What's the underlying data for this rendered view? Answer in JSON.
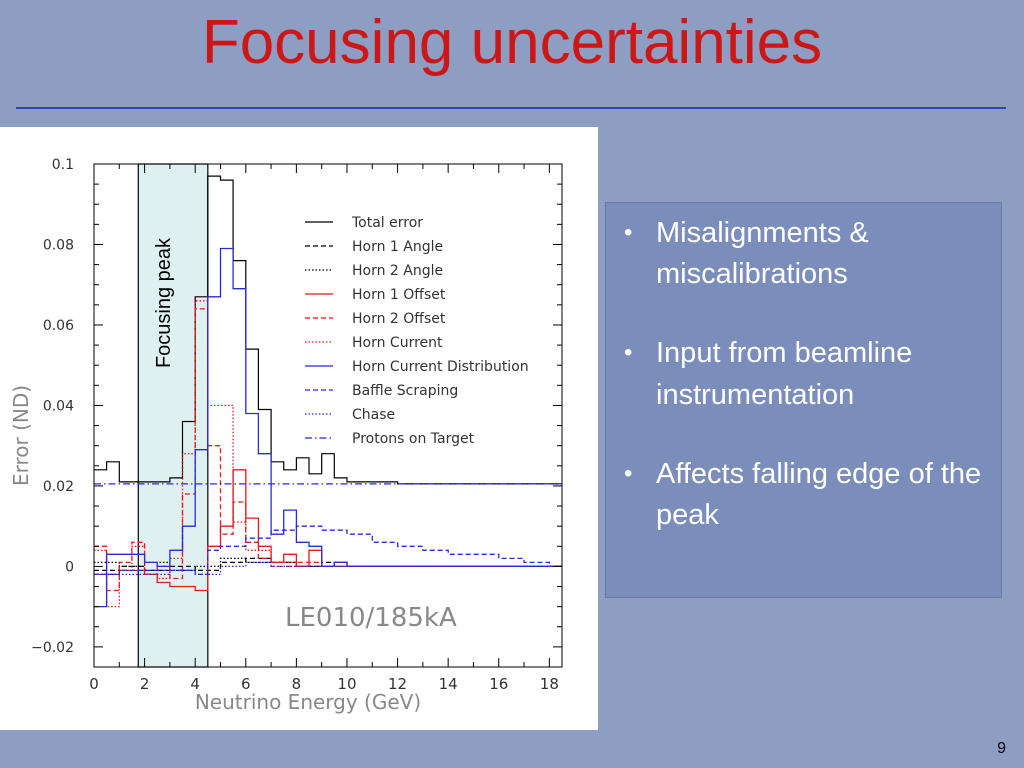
{
  "slide": {
    "title": "Focusing uncertainties",
    "slide_number": "9",
    "bullets": [
      "Misalignments & miscalibrations",
      "Input from beamline instrumentation",
      "Affects falling edge of the peak"
    ]
  },
  "chart_data": {
    "type": "line",
    "xlabel": "Neutrino Energy (GeV)",
    "ylabel": "Error (ND)",
    "xlim": [
      0,
      18.5
    ],
    "ylim": [
      -0.025,
      0.1
    ],
    "xticks": [
      0,
      2,
      4,
      6,
      8,
      10,
      12,
      14,
      16,
      18
    ],
    "yticks": [
      -0.02,
      0,
      0.02,
      0.04,
      0.06,
      0.08,
      0.1
    ],
    "xtick_labels": [
      "0",
      "2",
      "4",
      "6",
      "8",
      "10",
      "12",
      "14",
      "16",
      "18"
    ],
    "ytick_labels": [
      "−0.02",
      "0",
      "0.02",
      "0.04",
      "0.06",
      "0.08",
      "0.1"
    ],
    "annotation": "LE010/185kA",
    "highlight": {
      "label": "Focusing peak",
      "x_range": [
        1.75,
        4.5
      ],
      "fill": "#dff0f0"
    },
    "legend_position": "top-right",
    "series": [
      {
        "name": "Total error",
        "color": "#000000",
        "dash": "solid",
        "step": true,
        "x": [
          0,
          0.5,
          1,
          1.5,
          2,
          2.5,
          3,
          3.5,
          4,
          4.5,
          5,
          5.5,
          6,
          6.5,
          7,
          7.5,
          8,
          8.5,
          9,
          9.5,
          10,
          11,
          12,
          13,
          14,
          15,
          16,
          17,
          18
        ],
        "y": [
          0.024,
          0.026,
          0.021,
          0.021,
          0.021,
          0.021,
          0.022,
          0.036,
          0.067,
          0.097,
          0.096,
          0.076,
          0.054,
          0.039,
          0.026,
          0.024,
          0.027,
          0.023,
          0.028,
          0.022,
          0.021,
          0.021,
          0.0205,
          0.0205,
          0.0205,
          0.0205,
          0.0205,
          0.0205,
          0.0205
        ]
      },
      {
        "name": "Horn 1 Angle",
        "color": "#000000",
        "dash": "dashed",
        "step": true,
        "x": [
          0,
          1,
          2,
          3,
          4,
          5,
          6,
          7,
          8,
          9,
          10,
          12,
          18
        ],
        "y": [
          -0.001,
          0.0,
          -0.001,
          0.0,
          -0.001,
          0.001,
          0.002,
          0.001,
          0.0,
          0.001,
          0.0,
          0.0,
          0.0
        ]
      },
      {
        "name": "Horn 2 Angle",
        "color": "#000000",
        "dash": "dotted",
        "step": true,
        "x": [
          0,
          1,
          2,
          3,
          4,
          5,
          6,
          7,
          8,
          9,
          10,
          12,
          18
        ],
        "y": [
          0.001,
          0.0,
          0.001,
          -0.001,
          0.0,
          0.002,
          0.001,
          0.001,
          0.0,
          0.0,
          0.0,
          0.0,
          0.0
        ]
      },
      {
        "name": "Horn 1 Offset",
        "color": "#e21b1b",
        "dash": "solid",
        "step": true,
        "x": [
          0,
          0.5,
          1,
          1.5,
          2,
          2.5,
          3,
          3.5,
          4,
          4.5,
          5,
          5.5,
          6,
          6.5,
          7,
          7.5,
          8,
          8.5,
          9,
          9.5,
          10,
          11
        ],
        "y": [
          -0.002,
          -0.002,
          -0.001,
          -0.001,
          -0.002,
          -0.004,
          -0.005,
          -0.005,
          -0.006,
          0.005,
          0.01,
          0.024,
          0.012,
          0.005,
          0.001,
          0.003,
          0.0,
          0.004,
          0.0,
          0.001,
          0.0,
          0.0
        ]
      },
      {
        "name": "Horn 2 Offset",
        "color": "#e21b1b",
        "dash": "dashed",
        "step": true,
        "x": [
          0,
          0.5,
          1,
          1.5,
          2,
          2.5,
          3,
          3.5,
          4,
          4.5,
          5,
          5.5,
          6,
          6.5,
          7,
          8,
          9,
          10,
          11
        ],
        "y": [
          0.005,
          -0.006,
          0.001,
          0.006,
          -0.002,
          0.0,
          -0.003,
          0.018,
          0.064,
          0.03,
          0.008,
          0.016,
          0.006,
          0.002,
          0.0,
          0.001,
          0.0,
          0.0,
          0.0
        ]
      },
      {
        "name": "Horn Current",
        "color": "#e21b1b",
        "dash": "dotted",
        "step": true,
        "x": [
          0,
          0.5,
          1,
          1.5,
          2,
          2.5,
          3,
          3.5,
          4,
          4.5,
          5,
          5.5,
          6,
          7,
          8,
          9,
          10
        ],
        "y": [
          0.004,
          -0.01,
          -0.001,
          0.005,
          -0.002,
          -0.003,
          0.002,
          0.028,
          0.066,
          0.04,
          0.04,
          0.011,
          0.004,
          0.001,
          0.0,
          0.0,
          0.0
        ]
      },
      {
        "name": "Horn Current Distribution",
        "color": "#2a2ad8",
        "dash": "solid",
        "step": true,
        "x": [
          0,
          0.5,
          1,
          1.5,
          2,
          2.5,
          3,
          3.5,
          4,
          4.5,
          5,
          5.5,
          6,
          6.5,
          7,
          7.5,
          8,
          8.5,
          9,
          9.5,
          10,
          11,
          12,
          13,
          14,
          15,
          16,
          17,
          18
        ],
        "y": [
          -0.01,
          0.003,
          0.003,
          0.003,
          0.001,
          0.0,
          0.004,
          0.01,
          0.029,
          0.067,
          0.079,
          0.069,
          0.038,
          0.028,
          0.008,
          0.014,
          0.006,
          0.005,
          0.0,
          0.001,
          0.0,
          0.0,
          0.0,
          0.0,
          0.0,
          0.0,
          0.0,
          0.0,
          0.0
        ]
      },
      {
        "name": "Baffle Scraping",
        "color": "#2a2ad8",
        "dash": "dashed",
        "step": true,
        "x": [
          0,
          1,
          2,
          3,
          4,
          4.5,
          5,
          6,
          7,
          8,
          9,
          10,
          11,
          12,
          13,
          14,
          15,
          16,
          17,
          18
        ],
        "y": [
          -0.002,
          -0.001,
          -0.001,
          -0.001,
          -0.002,
          0.004,
          0.005,
          0.007,
          0.009,
          0.01,
          0.009,
          0.008,
          0.006,
          0.005,
          0.004,
          0.003,
          0.003,
          0.002,
          0.001,
          0.0
        ]
      },
      {
        "name": "Chase",
        "color": "#2a2ad8",
        "dash": "dotted",
        "step": true,
        "x": [
          0,
          1,
          2,
          3,
          4,
          5,
          6,
          7,
          8,
          9,
          10,
          12,
          18
        ],
        "y": [
          -0.002,
          -0.002,
          -0.002,
          -0.001,
          -0.002,
          0.0,
          0.001,
          0.0,
          0.0,
          0.0,
          0.0,
          0.0,
          0.0
        ]
      },
      {
        "name": "Protons on Target",
        "color": "#2a2ad8",
        "dash": "dashdot",
        "step": false,
        "x": [
          0,
          18.5
        ],
        "y": [
          0.0205,
          0.0205
        ]
      }
    ]
  }
}
